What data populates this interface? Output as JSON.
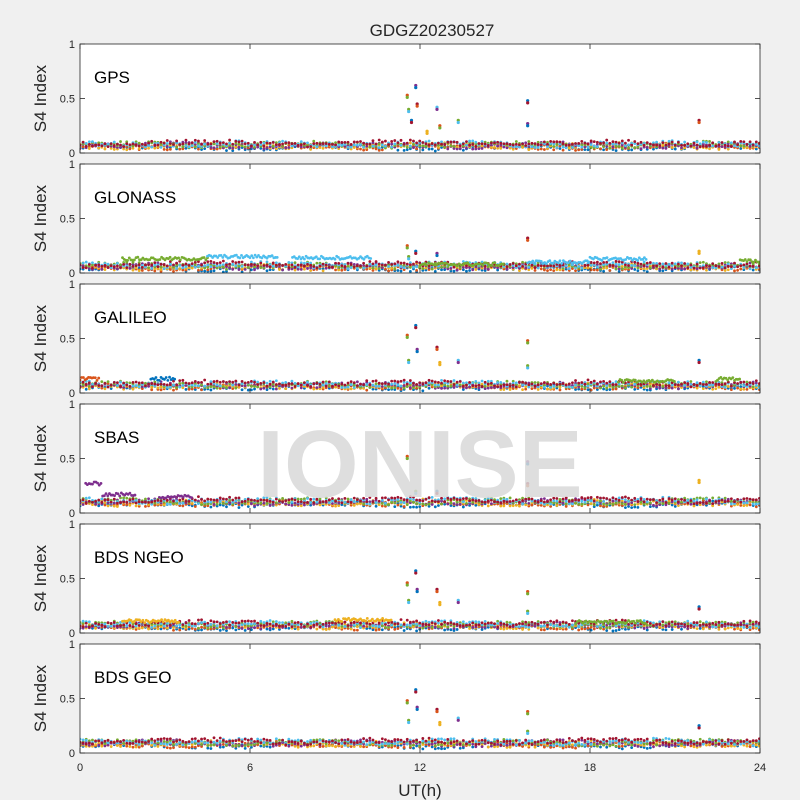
{
  "chart_data": {
    "type": "scatter",
    "title": "GDGZ20230527",
    "xlabel": "UT(h)",
    "ylabel": "S4 Index",
    "xlim": [
      0,
      24
    ],
    "ylim": [
      0,
      1
    ],
    "xticks": [
      "0",
      "6",
      "12",
      "18",
      "24"
    ],
    "yticks": [
      "0",
      "0.5",
      "1"
    ],
    "watermark": "IONISE",
    "series_colors": [
      "#0072BD",
      "#D95319",
      "#EDB120",
      "#7E2F8E",
      "#77AC30",
      "#4DBEEE",
      "#A2142F"
    ],
    "panels": [
      {
        "label": "GPS",
        "baseline": 0.07,
        "bands": [],
        "spikes": [
          [
            11.55,
            0.53
          ],
          [
            11.6,
            0.4
          ],
          [
            11.7,
            0.3
          ],
          [
            11.85,
            0.62
          ],
          [
            11.9,
            0.45
          ],
          [
            12.25,
            0.2
          ],
          [
            12.6,
            0.42
          ],
          [
            12.7,
            0.25
          ],
          [
            13.35,
            0.3
          ],
          [
            15.8,
            0.48
          ],
          [
            15.8,
            0.27
          ],
          [
            21.85,
            0.3
          ]
        ]
      },
      {
        "label": "GLONASS",
        "baseline": 0.06,
        "bands": [
          {
            "x0": 1.5,
            "x1": 4.5,
            "y": 0.13,
            "color": "#77AC30"
          },
          {
            "x0": 4.5,
            "x1": 7.0,
            "y": 0.15,
            "color": "#4DBEEE"
          },
          {
            "x0": 7.5,
            "x1": 10.3,
            "y": 0.14,
            "color": "#4DBEEE"
          },
          {
            "x0": 12.0,
            "x1": 15.0,
            "y": 0.08,
            "color": "#77AC30"
          },
          {
            "x0": 15.8,
            "x1": 18.0,
            "y": 0.1,
            "color": "#4DBEEE"
          },
          {
            "x0": 18.0,
            "x1": 20.0,
            "y": 0.13,
            "color": "#4DBEEE"
          },
          {
            "x0": 23.3,
            "x1": 24.0,
            "y": 0.11,
            "color": "#77AC30"
          }
        ],
        "spikes": [
          [
            11.55,
            0.25
          ],
          [
            11.6,
            0.15
          ],
          [
            11.85,
            0.2
          ],
          [
            12.6,
            0.18
          ],
          [
            15.8,
            0.32
          ],
          [
            21.85,
            0.2
          ]
        ]
      },
      {
        "label": "GALILEO",
        "baseline": 0.07,
        "bands": [
          {
            "x0": 0.0,
            "x1": 0.7,
            "y": 0.13,
            "color": "#D95319"
          },
          {
            "x0": 2.5,
            "x1": 3.4,
            "y": 0.13,
            "color": "#0072BD"
          },
          {
            "x0": 19.0,
            "x1": 21.0,
            "y": 0.11,
            "color": "#77AC30"
          },
          {
            "x0": 22.5,
            "x1": 23.3,
            "y": 0.13,
            "color": "#77AC30"
          }
        ],
        "spikes": [
          [
            11.55,
            0.53
          ],
          [
            11.6,
            0.3
          ],
          [
            11.85,
            0.62
          ],
          [
            11.9,
            0.4
          ],
          [
            12.6,
            0.42
          ],
          [
            12.7,
            0.28
          ],
          [
            13.35,
            0.3
          ],
          [
            15.8,
            0.48
          ],
          [
            15.8,
            0.25
          ],
          [
            21.85,
            0.3
          ]
        ]
      },
      {
        "label": "SBAS",
        "baseline": 0.1,
        "bands": [
          {
            "x0": 0.2,
            "x1": 0.8,
            "y": 0.27,
            "color": "#7E2F8E"
          },
          {
            "x0": 0.8,
            "x1": 2.0,
            "y": 0.17,
            "color": "#7E2F8E"
          },
          {
            "x0": 2.8,
            "x1": 4.0,
            "y": 0.15,
            "color": "#7E2F8E"
          }
        ],
        "spikes": [
          [
            11.55,
            0.52
          ],
          [
            11.85,
            0.2
          ],
          [
            12.6,
            0.2
          ],
          [
            15.8,
            0.47
          ],
          [
            15.8,
            0.27
          ],
          [
            21.85,
            0.3
          ]
        ]
      },
      {
        "label": "BDS NGEO",
        "baseline": 0.07,
        "bands": [
          {
            "x0": 1.5,
            "x1": 3.5,
            "y": 0.11,
            "color": "#EDB120"
          },
          {
            "x0": 9.0,
            "x1": 11.0,
            "y": 0.12,
            "color": "#EDB120"
          },
          {
            "x0": 17.5,
            "x1": 20.0,
            "y": 0.1,
            "color": "#77AC30"
          }
        ],
        "spikes": [
          [
            11.55,
            0.46
          ],
          [
            11.6,
            0.3
          ],
          [
            11.85,
            0.57
          ],
          [
            11.9,
            0.4
          ],
          [
            12.6,
            0.4
          ],
          [
            12.7,
            0.28
          ],
          [
            13.35,
            0.3
          ],
          [
            15.8,
            0.38
          ],
          [
            15.8,
            0.2
          ],
          [
            21.85,
            0.24
          ]
        ]
      },
      {
        "label": "BDS GEO",
        "baseline": 0.09,
        "bands": [],
        "spikes": [
          [
            11.55,
            0.48
          ],
          [
            11.6,
            0.3
          ],
          [
            11.85,
            0.58
          ],
          [
            11.9,
            0.42
          ],
          [
            12.6,
            0.4
          ],
          [
            12.7,
            0.28
          ],
          [
            13.35,
            0.32
          ],
          [
            15.8,
            0.38
          ],
          [
            15.8,
            0.2
          ],
          [
            21.85,
            0.25
          ]
        ]
      }
    ]
  }
}
